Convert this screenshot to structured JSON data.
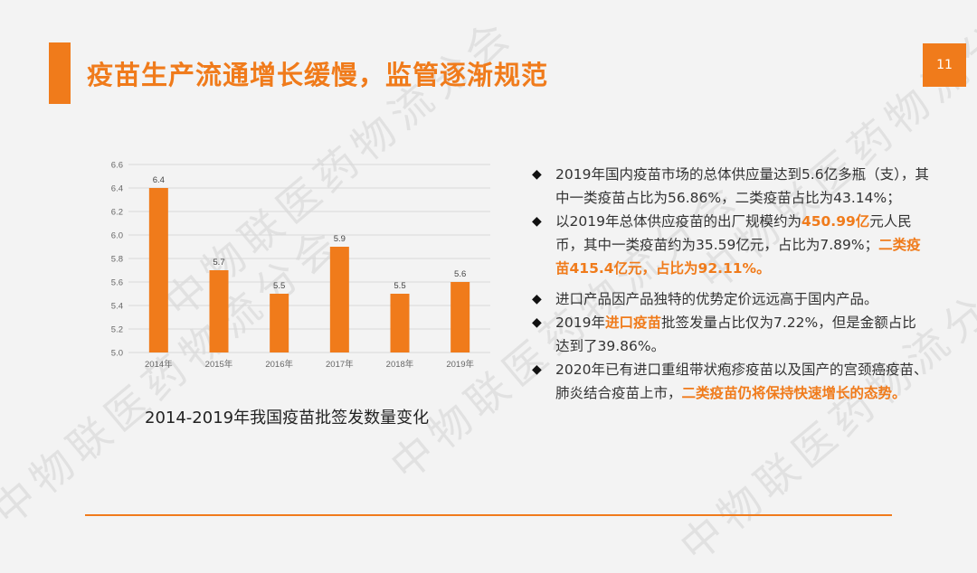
{
  "slide": {
    "title": "疫苗生产流通增长缓慢，监管逐渐规范",
    "page_number": "11",
    "watermark_text": "中物联医药物流分会",
    "accent_color": "#f07b1b"
  },
  "chart_data": {
    "type": "bar",
    "title": "2014-2019年我国疫苗批签发数量变化",
    "xlabel": "",
    "ylabel": "",
    "categories": [
      "2014年",
      "2015年",
      "2016年",
      "2017年",
      "2018年",
      "2019年"
    ],
    "values": [
      6.4,
      5.7,
      5.5,
      5.9,
      5.5,
      5.6
    ],
    "value_labels": [
      "6.4",
      "5.7",
      "5.5",
      "5.9",
      "5.5",
      "5.6"
    ],
    "ylim": [
      5.0,
      6.6
    ],
    "yticks": [
      "5.0",
      "5.2",
      "5.4",
      "5.6",
      "5.8",
      "6.0",
      "6.2",
      "6.4",
      "6.6"
    ],
    "grid": true,
    "bar_color": "#f07b1b"
  },
  "bullets": [
    {
      "parts": [
        {
          "text": "2019年国内疫苗市场的总体供应量达到5.6亿多瓶（支），其中一类疫苗占比为56.86%，二类疫苗占比为43.14%；",
          "hl": false
        }
      ]
    },
    {
      "parts": [
        {
          "text": "以2019年总体供应疫苗的出厂规模约为",
          "hl": false
        },
        {
          "text": "450.99亿",
          "hl": true
        },
        {
          "text": "元人民币，其中一类疫苗约为35.59亿元，占比为7.89%；",
          "hl": false
        },
        {
          "text": "二类疫苗415.4亿元，占比为92.11%。",
          "hl": true
        }
      ]
    },
    {
      "parts": [
        {
          "text": "进口产品因产品独特的优势定价远远高于国内产品。",
          "hl": false
        }
      ]
    },
    {
      "parts": [
        {
          "text": "2019年",
          "hl": false
        },
        {
          "text": "进口疫苗",
          "hl": true
        },
        {
          "text": "批签发量占比仅为7.22%，但是金额占比达到了39.86%。",
          "hl": false
        }
      ]
    },
    {
      "parts": [
        {
          "text": "2020年已有进口重组带状疱疹疫苗以及国产的宫颈癌疫苗、肺炎结合疫苗上市，",
          "hl": false
        },
        {
          "text": "二类疫苗仍将保持快速增长的态势。",
          "hl": true
        }
      ]
    }
  ],
  "bullet_marker": "◆"
}
